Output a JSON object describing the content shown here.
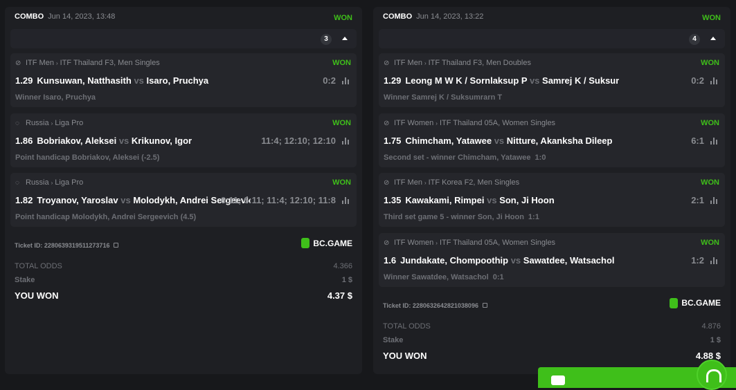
{
  "colors": {
    "won": "#3fbf1a",
    "background": "#17181b",
    "card": "#1e1f23"
  },
  "tickets": [
    {
      "type": "COMBO",
      "date": "Jun 14, 2023, 13:48",
      "status": "WON",
      "count": "3",
      "bets": [
        {
          "sport_icon": "tennis-icon",
          "category": "ITF Men",
          "tournament": "ITF Thailand F3, Men Singles",
          "status": "WON",
          "odds": "1.29",
          "home": "Kunsuwan, Natthasith",
          "vs": "vs",
          "away": "Isaro, Pruchya",
          "score": "0:2",
          "market": "Winner Isaro, Pruchya",
          "market_score": ""
        },
        {
          "sport_icon": "table-tennis-icon",
          "category": "Russia",
          "tournament": "Liga Pro",
          "status": "WON",
          "odds": "1.86",
          "home": "Bobriakov, Aleksei",
          "vs": "vs",
          "away": "Krikunov, Igor",
          "score": "11:4; 12:10; 12:10",
          "market": "Point handicap Bobriakov, Aleksei (-2.5)",
          "market_score": ""
        },
        {
          "sport_icon": "table-tennis-icon",
          "category": "Russia",
          "tournament": "Liga Pro",
          "status": "WON",
          "odds": "1.82",
          "home": "Troyanov, Yaroslav",
          "vs": "vs",
          "away": "Molodykh, Andrei Sergeevich",
          "score": "6:11; 6:11; 11:4; 12:10; 11:8",
          "market": "Point handicap Molodykh, Andrei Sergeevich (4.5)",
          "market_score": ""
        }
      ],
      "ticket_id": "Ticket ID: 2280639319511273716",
      "brand": "BC.GAME",
      "total_odds_label": "TOTAL ODDS",
      "total_odds": "4.366",
      "stake_label": "Stake",
      "stake": "1 $",
      "won_label": "YOU WON",
      "won_amount": "4.37 $"
    },
    {
      "type": "COMBO",
      "date": "Jun 14, 2023, 13:22",
      "status": "WON",
      "count": "4",
      "bets": [
        {
          "sport_icon": "tennis-icon",
          "category": "ITF Men",
          "tournament": "ITF Thailand F3, Men Doubles",
          "status": "WON",
          "odds": "1.29",
          "home": "Leong M W K / Sornlaksup P",
          "vs": "vs",
          "away": "Samrej K / Suksumrarn T",
          "score": "0:2",
          "market": "Winner Samrej K / Suksumrarn T",
          "market_score": ""
        },
        {
          "sport_icon": "tennis-icon",
          "category": "ITF Women",
          "tournament": "ITF Thailand 05A, Women Singles",
          "status": "WON",
          "odds": "1.75",
          "home": "Chimcham, Yatawee",
          "vs": "vs",
          "away": "Nitture, Akanksha Dileep",
          "score": "6:1",
          "market": "Second set - winner Chimcham, Yatawee",
          "market_score": "1:0"
        },
        {
          "sport_icon": "tennis-icon",
          "category": "ITF Men",
          "tournament": "ITF Korea F2, Men Singles",
          "status": "WON",
          "odds": "1.35",
          "home": "Kawakami, Rimpei",
          "vs": "vs",
          "away": "Son, Ji Hoon",
          "score": "2:1",
          "market": "Third set game 5 - winner Son, Ji Hoon",
          "market_score": "1:1"
        },
        {
          "sport_icon": "tennis-icon",
          "category": "ITF Women",
          "tournament": "ITF Thailand 05A, Women Singles",
          "status": "WON",
          "odds": "1.6",
          "home": "Jundakate, Chompoothip",
          "vs": "vs",
          "away": "Sawatdee, Watsachol",
          "score": "1:2",
          "market": "Winner Sawatdee, Watsachol",
          "market_score": "0:1"
        }
      ],
      "ticket_id": "Ticket ID: 2280632642821038096",
      "brand": "BC.GAME",
      "total_odds_label": "TOTAL ODDS",
      "total_odds": "4.876",
      "stake_label": "Stake",
      "stake": "1 $",
      "won_label": "YOU WON",
      "won_amount": "4.88 $"
    }
  ]
}
